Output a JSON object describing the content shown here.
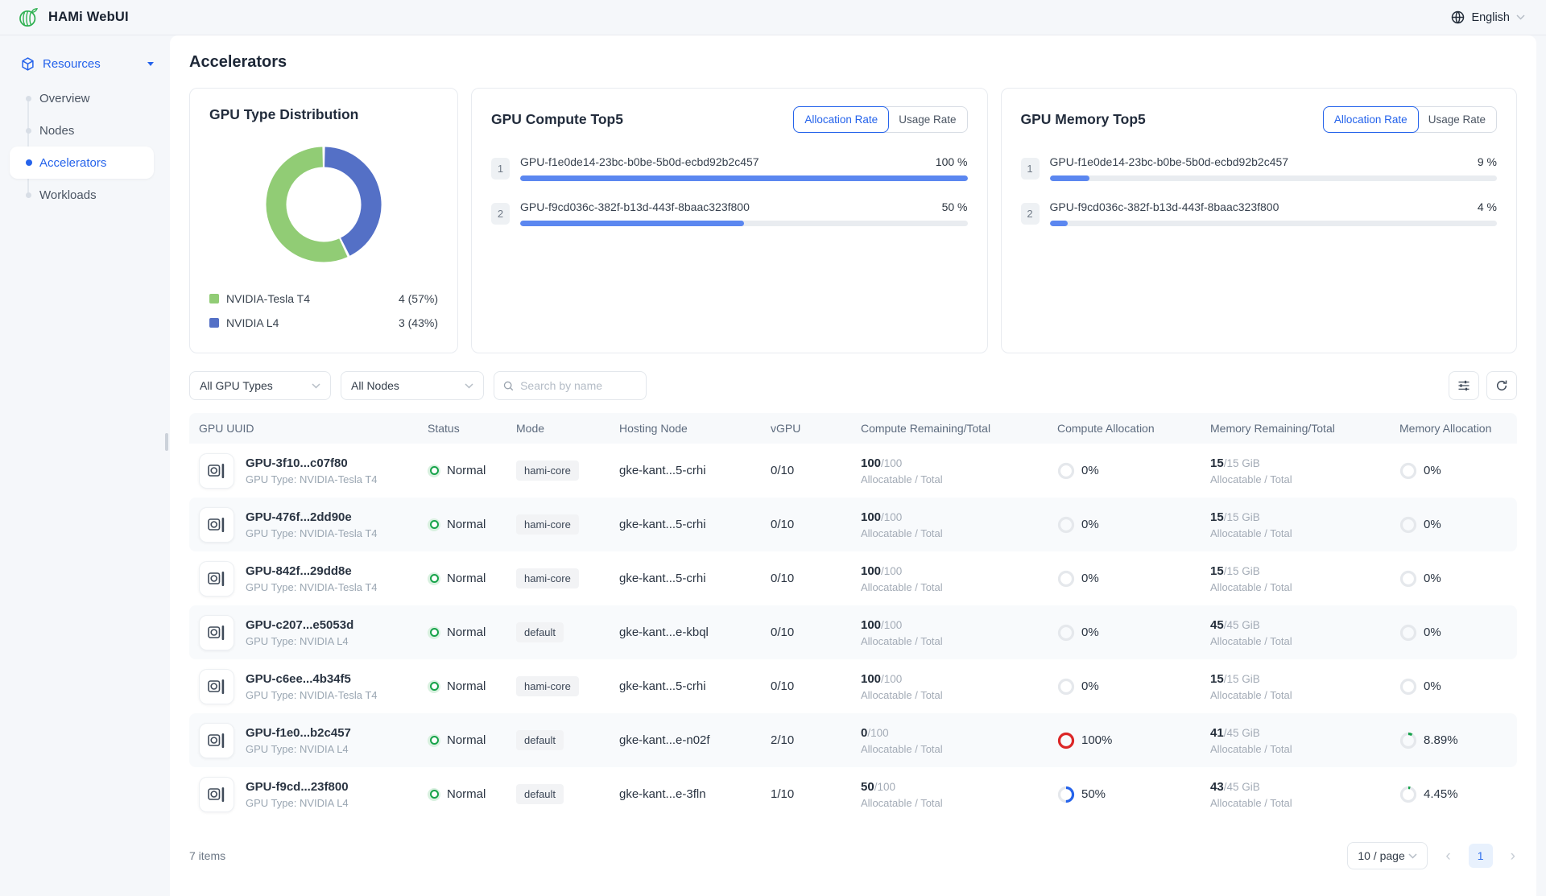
{
  "app": {
    "title": "HAMi WebUI",
    "language": "English"
  },
  "sidebar": {
    "section_label": "Resources",
    "items": [
      {
        "label": "Overview",
        "active": false
      },
      {
        "label": "Nodes",
        "active": false
      },
      {
        "label": "Accelerators",
        "active": true
      },
      {
        "label": "Workloads",
        "active": false
      }
    ]
  },
  "page": {
    "title": "Accelerators"
  },
  "chart_data": {
    "type": "pie",
    "title": "GPU Type Distribution",
    "labels": [
      "NVIDIA-Tesla T4",
      "NVIDIA L4"
    ],
    "values": [
      4,
      3
    ],
    "percent_labels": [
      "57%",
      "43%"
    ],
    "colors": [
      "#91cc75",
      "#5470c6"
    ],
    "donut": true,
    "legend": [
      {
        "label": "NVIDIA-Tesla T4",
        "value": "4 (57%)"
      },
      {
        "label": "NVIDIA L4",
        "value": "3 (43%)"
      }
    ]
  },
  "compute_top5": {
    "title": "GPU Compute Top5",
    "toggle": {
      "options": [
        "Allocation Rate",
        "Usage Rate"
      ],
      "active": "Allocation Rate"
    },
    "rows": [
      {
        "rank": "1",
        "uuid": "GPU-f1e0de14-23bc-b0be-5b0d-ecbd92b2c457",
        "value": "100 %",
        "pct": 100
      },
      {
        "rank": "2",
        "uuid": "GPU-f9cd036c-382f-b13d-443f-8baac323f800",
        "value": "50 %",
        "pct": 50
      }
    ]
  },
  "memory_top5": {
    "title": "GPU Memory Top5",
    "toggle": {
      "options": [
        "Allocation Rate",
        "Usage Rate"
      ],
      "active": "Allocation Rate"
    },
    "rows": [
      {
        "rank": "1",
        "uuid": "GPU-f1e0de14-23bc-b0be-5b0d-ecbd92b2c457",
        "value": "9 %",
        "pct": 9
      },
      {
        "rank": "2",
        "uuid": "GPU-f9cd036c-382f-b13d-443f-8baac323f800",
        "value": "4 %",
        "pct": 4
      }
    ]
  },
  "filters": {
    "gpu_type": "All GPU Types",
    "node": "All Nodes",
    "search_placeholder": "Search by name"
  },
  "table": {
    "columns": [
      "GPU UUID",
      "Status",
      "Mode",
      "Hosting Node",
      "vGPU",
      "Compute Remaining/Total",
      "Compute Allocation",
      "Memory Remaining/Total",
      "Memory Allocation"
    ],
    "sub_label": "Allocatable / Total",
    "rows": [
      {
        "uuid": "GPU-3f10...c07f80",
        "gpu_type": "GPU Type: NVIDIA-Tesla T4",
        "status": "Normal",
        "mode": "hami-core",
        "node": "gke-kant...5-crhi",
        "vgpu": "0/10",
        "compute_remaining": "100",
        "compute_total": "/100",
        "compute_alloc": {
          "label": "0%",
          "pct": 0,
          "color": "#c9ced6"
        },
        "memory_remaining": "15",
        "memory_total": "/15 GiB",
        "memory_alloc": {
          "label": "0%",
          "pct": 0,
          "color": "#c9ced6"
        }
      },
      {
        "uuid": "GPU-476f...2dd90e",
        "gpu_type": "GPU Type: NVIDIA-Tesla T4",
        "status": "Normal",
        "mode": "hami-core",
        "node": "gke-kant...5-crhi",
        "vgpu": "0/10",
        "compute_remaining": "100",
        "compute_total": "/100",
        "compute_alloc": {
          "label": "0%",
          "pct": 0,
          "color": "#c9ced6"
        },
        "memory_remaining": "15",
        "memory_total": "/15 GiB",
        "memory_alloc": {
          "label": "0%",
          "pct": 0,
          "color": "#c9ced6"
        }
      },
      {
        "uuid": "GPU-842f...29dd8e",
        "gpu_type": "GPU Type: NVIDIA-Tesla T4",
        "status": "Normal",
        "mode": "hami-core",
        "node": "gke-kant...5-crhi",
        "vgpu": "0/10",
        "compute_remaining": "100",
        "compute_total": "/100",
        "compute_alloc": {
          "label": "0%",
          "pct": 0,
          "color": "#c9ced6"
        },
        "memory_remaining": "15",
        "memory_total": "/15 GiB",
        "memory_alloc": {
          "label": "0%",
          "pct": 0,
          "color": "#c9ced6"
        }
      },
      {
        "uuid": "GPU-c207...e5053d",
        "gpu_type": "GPU Type: NVIDIA L4",
        "status": "Normal",
        "mode": "default",
        "node": "gke-kant...e-kbql",
        "vgpu": "0/10",
        "compute_remaining": "100",
        "compute_total": "/100",
        "compute_alloc": {
          "label": "0%",
          "pct": 0,
          "color": "#c9ced6"
        },
        "memory_remaining": "45",
        "memory_total": "/45 GiB",
        "memory_alloc": {
          "label": "0%",
          "pct": 0,
          "color": "#c9ced6"
        }
      },
      {
        "uuid": "GPU-c6ee...4b34f5",
        "gpu_type": "GPU Type: NVIDIA-Tesla T4",
        "status": "Normal",
        "mode": "hami-core",
        "node": "gke-kant...5-crhi",
        "vgpu": "0/10",
        "compute_remaining": "100",
        "compute_total": "/100",
        "compute_alloc": {
          "label": "0%",
          "pct": 0,
          "color": "#c9ced6"
        },
        "memory_remaining": "15",
        "memory_total": "/15 GiB",
        "memory_alloc": {
          "label": "0%",
          "pct": 0,
          "color": "#c9ced6"
        }
      },
      {
        "uuid": "GPU-f1e0...b2c457",
        "gpu_type": "GPU Type: NVIDIA L4",
        "status": "Normal",
        "mode": "default",
        "node": "gke-kant...e-n02f",
        "vgpu": "2/10",
        "compute_remaining": "0",
        "compute_total": "/100",
        "compute_alloc": {
          "label": "100%",
          "pct": 100,
          "color": "#dc2626"
        },
        "memory_remaining": "41",
        "memory_total": "/45 GiB",
        "memory_alloc": {
          "label": "8.89%",
          "pct": 8.89,
          "color": "#16a34a"
        }
      },
      {
        "uuid": "GPU-f9cd...23f800",
        "gpu_type": "GPU Type: NVIDIA L4",
        "status": "Normal",
        "mode": "default",
        "node": "gke-kant...e-3fln",
        "vgpu": "1/10",
        "compute_remaining": "50",
        "compute_total": "/100",
        "compute_alloc": {
          "label": "50%",
          "pct": 50,
          "color": "#2563eb"
        },
        "memory_remaining": "43",
        "memory_total": "/45 GiB",
        "memory_alloc": {
          "label": "4.45%",
          "pct": 4.45,
          "color": "#16a34a"
        }
      }
    ]
  },
  "pagination": {
    "total_label": "7 items",
    "page_size": "10 / page",
    "current_page": "1"
  }
}
